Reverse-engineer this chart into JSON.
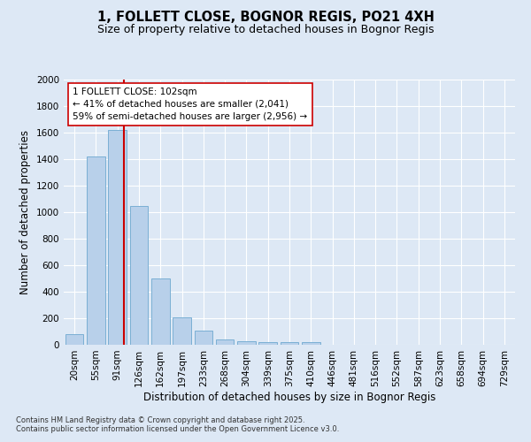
{
  "title": "1, FOLLETT CLOSE, BOGNOR REGIS, PO21 4XH",
  "subtitle": "Size of property relative to detached houses in Bognor Regis",
  "xlabel": "Distribution of detached houses by size in Bognor Regis",
  "ylabel": "Number of detached properties",
  "categories": [
    "20sqm",
    "55sqm",
    "91sqm",
    "126sqm",
    "162sqm",
    "197sqm",
    "233sqm",
    "268sqm",
    "304sqm",
    "339sqm",
    "375sqm",
    "410sqm",
    "446sqm",
    "481sqm",
    "516sqm",
    "552sqm",
    "587sqm",
    "623sqm",
    "658sqm",
    "694sqm",
    "729sqm"
  ],
  "values": [
    80,
    1420,
    1620,
    1050,
    500,
    205,
    105,
    38,
    30,
    20,
    20,
    20,
    0,
    0,
    0,
    0,
    0,
    0,
    0,
    0,
    0
  ],
  "bar_color": "#b8d0ea",
  "bar_edge_color": "#7aafd4",
  "background_color": "#dde8f5",
  "grid_color": "#ffffff",
  "ylim": [
    0,
    2000
  ],
  "yticks": [
    0,
    200,
    400,
    600,
    800,
    1000,
    1200,
    1400,
    1600,
    1800,
    2000
  ],
  "vline_color": "#cc0000",
  "vline_x": 2.32,
  "annotation_title": "1 FOLLETT CLOSE: 102sqm",
  "annotation_line1": "← 41% of detached houses are smaller (2,041)",
  "annotation_line2": "59% of semi-detached houses are larger (2,956) →",
  "annotation_box_color": "#ffffff",
  "annotation_box_edge": "#cc0000",
  "footer_line1": "Contains HM Land Registry data © Crown copyright and database right 2025.",
  "footer_line2": "Contains public sector information licensed under the Open Government Licence v3.0.",
  "title_fontsize": 10.5,
  "subtitle_fontsize": 9,
  "axis_label_fontsize": 8.5,
  "tick_fontsize": 7.5,
  "annotation_fontsize": 7.5,
  "footer_fontsize": 6
}
